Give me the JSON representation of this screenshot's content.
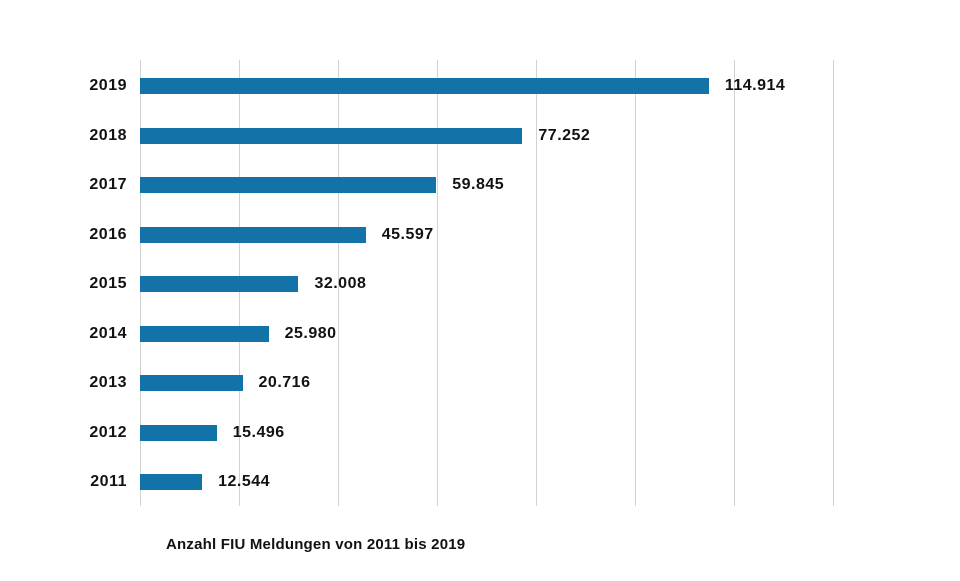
{
  "chart_data": {
    "type": "bar",
    "orientation": "horizontal",
    "title": "Anzahl FIU Meldungen von 2011 bis 2019",
    "categories": [
      "2019",
      "2018",
      "2017",
      "2016",
      "2015",
      "2014",
      "2013",
      "2012",
      "2011"
    ],
    "values": [
      114914,
      77252,
      59845,
      45597,
      32008,
      25980,
      20716,
      15496,
      12544
    ],
    "value_labels": [
      "114.914",
      "77.252",
      "59.845",
      "45.597",
      "32.008",
      "25.980",
      "20.716",
      "15.496",
      "12.544"
    ],
    "xlabel": "",
    "ylabel": "",
    "xlim": [
      0,
      140000
    ],
    "grid_step": 20000,
    "grid": "vertical-only",
    "legend": "none",
    "colors": {
      "bar": "#1373a9",
      "gridline": "#d2d2d2",
      "text": "#121212",
      "background": "#ffffff"
    }
  }
}
